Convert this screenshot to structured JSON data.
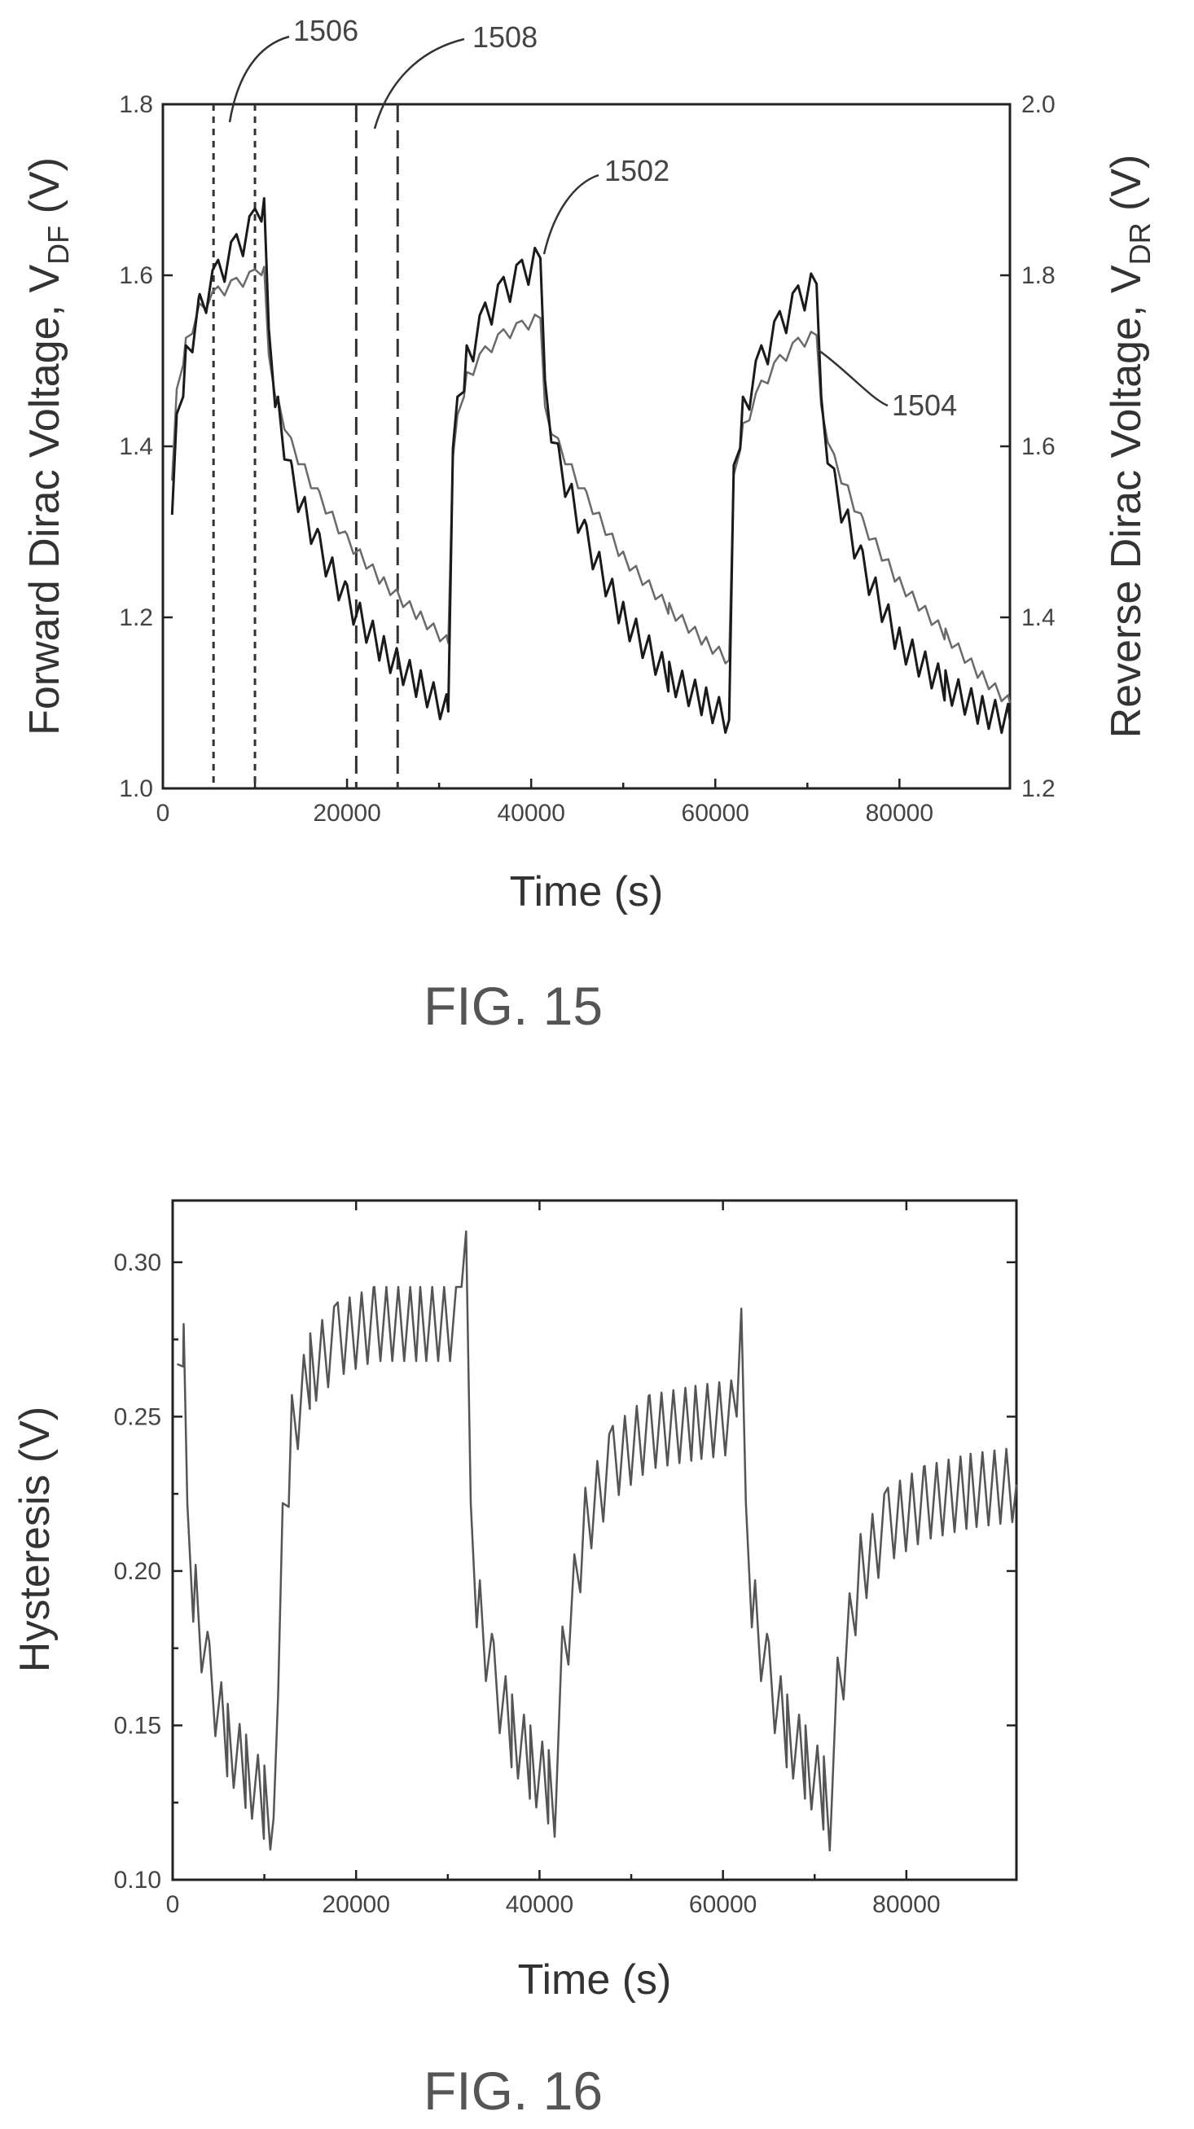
{
  "chart_data": [
    {
      "type": "line",
      "caption": "FIG. 15",
      "xlabel": "Time (s)",
      "ylabel_left": "Forward Dirac Voltage, V",
      "ylabel_left_sub": "DF",
      "ylabel_left_unit": " (V)",
      "ylabel_right": "Reverse Dirac Voltage, V",
      "ylabel_right_sub": "DR",
      "ylabel_right_unit": " (V)",
      "xlim": [
        0,
        92000
      ],
      "ylim_left": [
        1.0,
        1.8
      ],
      "ylim_right": [
        1.2,
        2.0
      ],
      "x_ticks": [
        "0",
        "20000",
        "40000",
        "60000",
        "80000"
      ],
      "y_ticks_left": [
        "1.0",
        "1.2",
        "1.4",
        "1.6",
        "1.8"
      ],
      "y_ticks_right": [
        "1.2",
        "1.4",
        "1.6",
        "1.8",
        "2.0"
      ],
      "grid": false,
      "color_forward": "#1a1a1a",
      "color_reverse": "#6a6a6a",
      "series": [
        {
          "name": "1502",
          "axis": "left",
          "x": [
            1000,
            1500,
            2500,
            4000,
            6000,
            8000,
            10000,
            11000,
            11500,
            12500,
            14000,
            17000,
            20000,
            24000,
            28000,
            31000,
            31500,
            32000,
            33000,
            35000,
            37000,
            39000,
            41000,
            41500,
            43000,
            46000,
            50000,
            55000,
            59000,
            61500,
            62000,
            63000,
            65000,
            67000,
            69000,
            71000,
            71500,
            73000,
            76000,
            80000,
            85000,
            89000,
            92000
          ],
          "y": [
            1.32,
            1.42,
            1.5,
            1.56,
            1.6,
            1.63,
            1.66,
            1.69,
            1.52,
            1.44,
            1.36,
            1.28,
            1.22,
            1.16,
            1.12,
            1.09,
            1.38,
            1.44,
            1.5,
            1.55,
            1.58,
            1.6,
            1.62,
            1.46,
            1.38,
            1.29,
            1.2,
            1.13,
            1.1,
            1.08,
            1.36,
            1.44,
            1.5,
            1.54,
            1.57,
            1.59,
            1.44,
            1.35,
            1.26,
            1.17,
            1.12,
            1.09,
            1.08
          ]
        },
        {
          "name": "1504",
          "axis": "right",
          "x": [
            1000,
            1500,
            2500,
            4000,
            6000,
            8000,
            10000,
            11000,
            11500,
            12500,
            14000,
            17000,
            20000,
            24000,
            28000,
            31000,
            31500,
            32000,
            33000,
            35000,
            37000,
            39000,
            41000,
            41500,
            43000,
            46000,
            50000,
            55000,
            59000,
            61500,
            62000,
            63000,
            65000,
            67000,
            69000,
            71000,
            71500,
            73000,
            76000,
            80000,
            85000,
            89000,
            92000
          ],
          "y": [
            1.56,
            1.66,
            1.72,
            1.76,
            1.78,
            1.79,
            1.8,
            1.81,
            1.7,
            1.65,
            1.6,
            1.54,
            1.49,
            1.44,
            1.4,
            1.37,
            1.58,
            1.63,
            1.68,
            1.71,
            1.73,
            1.74,
            1.75,
            1.64,
            1.6,
            1.54,
            1.47,
            1.41,
            1.37,
            1.35,
            1.56,
            1.62,
            1.67,
            1.7,
            1.72,
            1.73,
            1.64,
            1.58,
            1.51,
            1.44,
            1.38,
            1.33,
            1.3
          ]
        }
      ],
      "annotations": [
        {
          "label": "1506",
          "type": "short-dashed vertical lines",
          "x": [
            5500,
            10000
          ]
        },
        {
          "label": "1508",
          "type": "long-dashed vertical lines",
          "x": [
            21000,
            25500
          ]
        },
        {
          "label": "1502",
          "points_to": "forward curve"
        },
        {
          "label": "1504",
          "points_to": "reverse curve"
        }
      ]
    },
    {
      "type": "line",
      "caption": "FIG. 16",
      "xlabel": "Time (s)",
      "ylabel": "Hysteresis (V)",
      "xlim": [
        0,
        92000
      ],
      "ylim": [
        0.1,
        0.32
      ],
      "x_ticks": [
        "0",
        "20000",
        "40000",
        "60000",
        "80000"
      ],
      "y_ticks": [
        "0.10",
        "0.15",
        "0.20",
        "0.25",
        "0.30"
      ],
      "grid": false,
      "color": "#555555",
      "series": [
        {
          "x": [
            500,
            1200,
            1600,
            2500,
            4000,
            6000,
            8000,
            10000,
            11000,
            11500,
            12000,
            13000,
            15000,
            18000,
            22000,
            27000,
            31500,
            32000,
            32500,
            33500,
            35000,
            37000,
            39000,
            41000,
            41800,
            42500,
            45000,
            48000,
            52000,
            57000,
            61500,
            62000,
            62500,
            63500,
            65000,
            67000,
            69000,
            71000,
            71800,
            72500,
            75000,
            78000,
            82000,
            87000,
            92000
          ],
          "y": [
            0.255,
            0.28,
            0.21,
            0.19,
            0.165,
            0.145,
            0.135,
            0.125,
            0.12,
            0.16,
            0.21,
            0.245,
            0.265,
            0.275,
            0.28,
            0.28,
            0.28,
            0.31,
            0.21,
            0.185,
            0.165,
            0.148,
            0.138,
            0.13,
            0.125,
            0.17,
            0.215,
            0.235,
            0.245,
            0.248,
            0.25,
            0.285,
            0.21,
            0.185,
            0.165,
            0.148,
            0.138,
            0.128,
            0.12,
            0.16,
            0.2,
            0.215,
            0.222,
            0.226,
            0.228
          ]
        }
      ]
    }
  ]
}
